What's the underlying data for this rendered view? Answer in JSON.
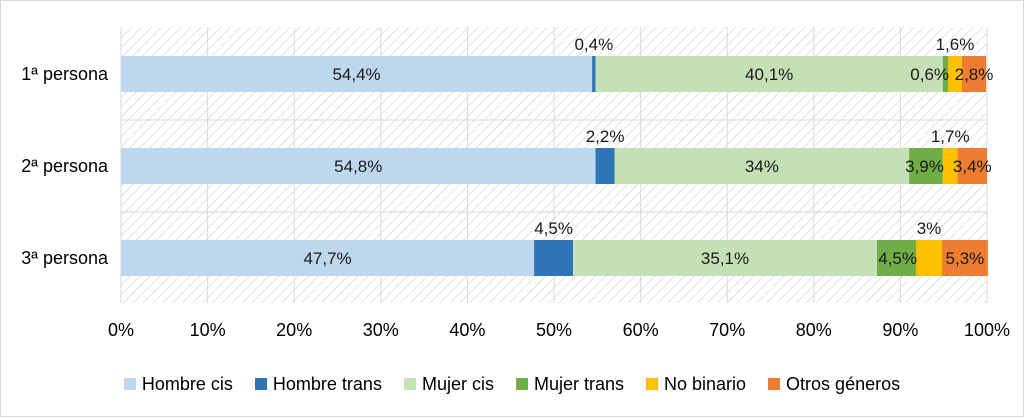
{
  "chart_data": {
    "type": "bar",
    "orientation": "horizontal",
    "stacked": "100%",
    "categories": [
      "1ª persona",
      "2ª persona",
      "3ª persona"
    ],
    "series": [
      {
        "name": "Hombre cis",
        "color": "#bdd7ee",
        "values": [
          54.4,
          54.8,
          47.7
        ],
        "labels": [
          "54,4%",
          "54,8%",
          "47,7%"
        ]
      },
      {
        "name": "Hombre trans",
        "color": "#2e75b6",
        "values": [
          0.4,
          2.2,
          4.5
        ],
        "labels": [
          "0,4%",
          "2,2%",
          "4,5%"
        ]
      },
      {
        "name": "Mujer cis",
        "color": "#c5e0b4",
        "values": [
          40.1,
          34,
          35.1
        ],
        "labels": [
          "40,1%",
          "34%",
          "35,1%"
        ]
      },
      {
        "name": "Mujer trans",
        "color": "#70ad47",
        "values": [
          0.6,
          3.9,
          4.5
        ],
        "labels": [
          "0,6%",
          "3,9%",
          "4,5%"
        ]
      },
      {
        "name": "No binario",
        "color": "#ffc000",
        "values": [
          1.6,
          1.7,
          3
        ],
        "labels": [
          "1,6%",
          "1,7%",
          "3%"
        ]
      },
      {
        "name": "Otros géneros",
        "color": "#ed7d31",
        "values": [
          2.8,
          3.4,
          5.3
        ],
        "labels": [
          "2,8%",
          "3,4%",
          "5,3%"
        ]
      }
    ],
    "xlim": [
      0,
      100
    ],
    "x_ticks": [
      "0%",
      "10%",
      "20%",
      "30%",
      "40%",
      "50%",
      "60%",
      "70%",
      "80%",
      "90%",
      "100%"
    ],
    "grid": true,
    "legend_position": "bottom"
  }
}
